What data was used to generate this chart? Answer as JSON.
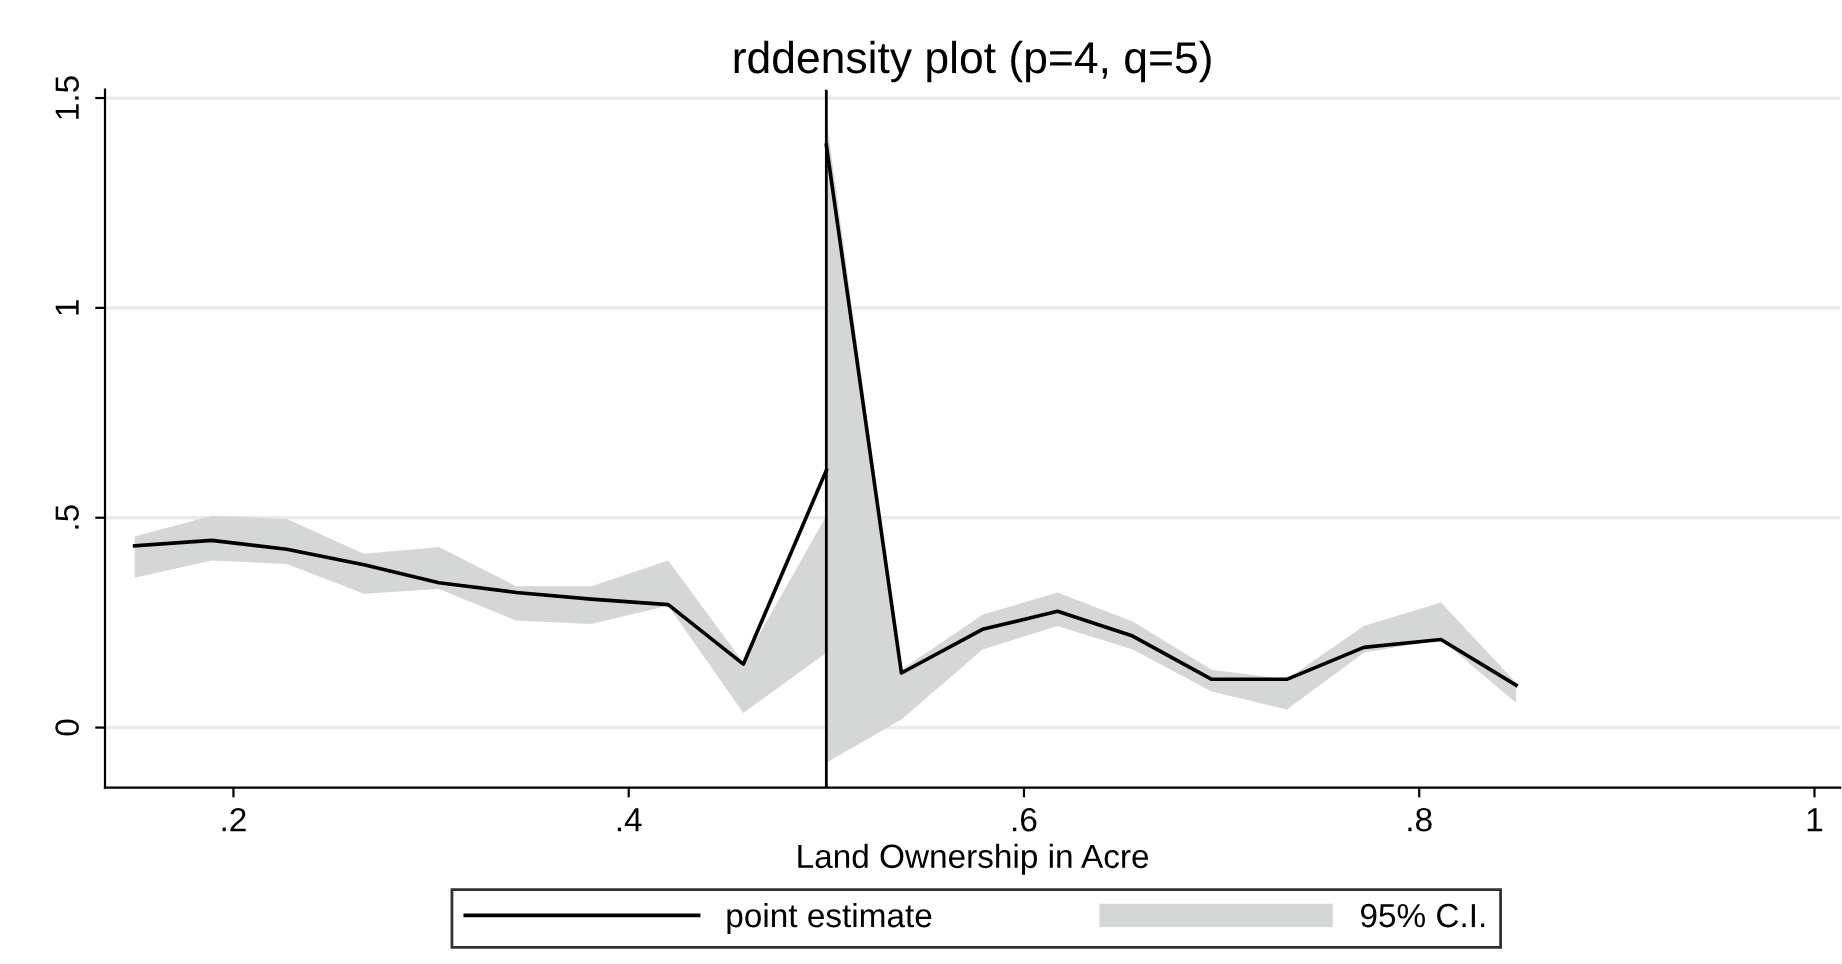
{
  "chart_data": {
    "type": "line",
    "title": "rddensity plot (p=4, q=5)",
    "xlabel": "Land Ownership in Acre",
    "xlim": [
      0.135,
      1.013
    ],
    "xticks": [
      {
        "value": 0.2,
        "label": ".2"
      },
      {
        "value": 0.4,
        "label": ".4"
      },
      {
        "value": 0.6,
        "label": ".6"
      },
      {
        "value": 0.8,
        "label": ".8"
      },
      1
    ],
    "ylim": [
      -0.143,
      1.52
    ],
    "yticks": [
      0,
      {
        "value": 0.5,
        "label": ".5"
      },
      1,
      1.5
    ],
    "grid": "y",
    "legend": "bottom",
    "annotations": [
      "95% C.I."
    ],
    "series": [
      {
        "name": "point estimate",
        "type": "line",
        "color": "#000000",
        "x": [
          0.15,
          0.189,
          0.227,
          0.266,
          0.304,
          0.343,
          0.381,
          0.42,
          0.458,
          0.5
        ],
        "values": [
          0.433,
          0.446,
          0.425,
          0.388,
          0.345,
          0.322,
          0.306,
          0.293,
          0.151,
          0.613
        ],
        "lower": [
          0.357,
          0.398,
          0.39,
          0.319,
          0.33,
          0.255,
          0.247,
          0.29,
          0.035,
          0.178
        ],
        "upper": [
          0.455,
          0.505,
          0.497,
          0.414,
          0.43,
          0.337,
          0.337,
          0.398,
          0.155,
          0.505
        ]
      },
      {
        "color": "#000000",
        "x": [
          0.5,
          0.538,
          0.579,
          0.617,
          0.655,
          0.695,
          0.733,
          0.772,
          0.811,
          0.849
        ],
        "values": [
          1.388,
          0.13,
          0.234,
          0.277,
          0.218,
          0.115,
          0.115,
          0.191,
          0.21,
          0.101
        ],
        "lower": [
          -0.084,
          0.019,
          0.186,
          0.242,
          0.186,
          0.086,
          0.043,
          0.178,
          0.21,
          0.059
        ],
        "upper": [
          1.452,
          0.138,
          0.269,
          0.322,
          0.253,
          0.138,
          0.115,
          0.242,
          0.298,
          0.107
        ]
      }
    ],
    "ref_lines": [
      {
        "axis": "x",
        "value": 0.5,
        "color": "#000000"
      }
    ]
  }
}
